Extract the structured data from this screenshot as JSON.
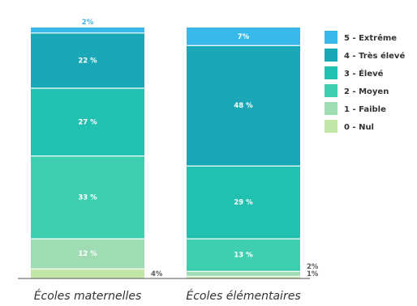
{
  "chart_data": {
    "type": "bar",
    "stacked": true,
    "categories": [
      "Écoles maternelles",
      "Écoles élémentaires"
    ],
    "series": [
      {
        "name": "0 - Nul",
        "color": "#c2e6a6",
        "values": [
          4,
          1
        ],
        "labels": [
          "4%",
          "1%"
        ]
      },
      {
        "name": "1 - Faible",
        "color": "#9fdcb3",
        "values": [
          12,
          2
        ],
        "labels": [
          "12 %",
          "2%"
        ]
      },
      {
        "name": "2 - Moyen",
        "color": "#3ecfb0",
        "values": [
          33,
          13
        ],
        "labels": [
          "33 %",
          "13 %"
        ]
      },
      {
        "name": "3 - Élevé",
        "color": "#22c0b0",
        "values": [
          27,
          29
        ],
        "labels": [
          "27 %",
          "29 %"
        ]
      },
      {
        "name": "4 - Très élevé",
        "color": "#1ba8b6",
        "values": [
          22,
          48
        ],
        "labels": [
          "22 %",
          "48 %"
        ]
      },
      {
        "name": "5 - Extrême",
        "color": "#37b8e8",
        "values": [
          2,
          7
        ],
        "labels": [
          "2%",
          "7%"
        ]
      }
    ],
    "ylim": [
      0,
      100
    ],
    "legend_position": "right",
    "grid": false
  }
}
